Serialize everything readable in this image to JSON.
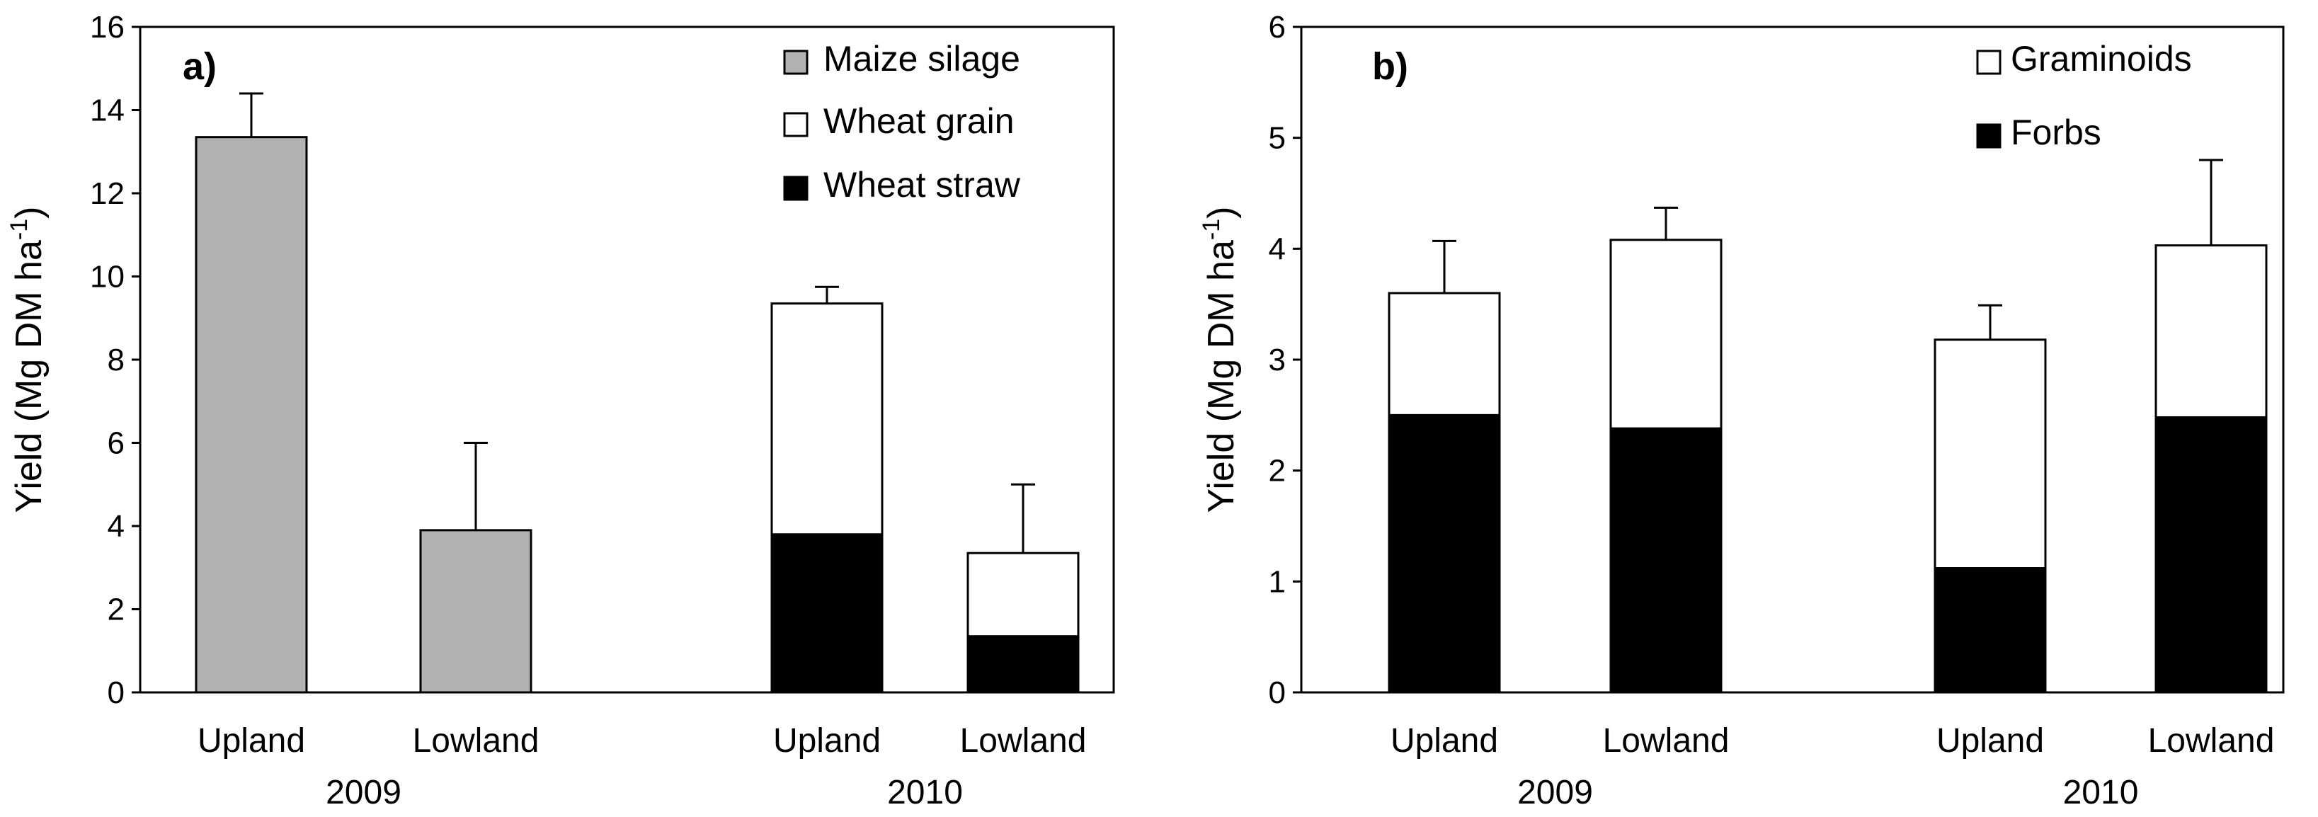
{
  "chart_data": [
    {
      "type": "bar",
      "stacked": true,
      "panel_label": "a)",
      "title": "",
      "xlabel": "",
      "ylabel": "Yield (Mg DM ha",
      "ylabel_sup": "-1",
      "ylabel_close": ")",
      "ylim": [
        0,
        16
      ],
      "yticks": [
        0,
        2,
        4,
        6,
        8,
        10,
        12,
        14,
        16
      ],
      "categories": [
        "Upland",
        "Lowland",
        "Upland",
        "Lowland"
      ],
      "groups": [
        {
          "label": "2009",
          "category_indices": [
            0,
            1
          ]
        },
        {
          "label": "2010",
          "category_indices": [
            2,
            3
          ]
        }
      ],
      "legend_position": "top-right",
      "series": [
        {
          "name": "Wheat straw",
          "color": "#000000",
          "values": [
            0,
            0,
            3.8,
            1.35
          ]
        },
        {
          "name": "Wheat grain",
          "color": "#ffffff",
          "values": [
            0,
            0,
            5.55,
            2.0
          ]
        },
        {
          "name": "Maize silage",
          "color": "#b2b2b2",
          "values": [
            13.35,
            3.9,
            0,
            0
          ]
        }
      ],
      "legend_order": [
        "Maize silage",
        "Wheat grain",
        "Wheat straw"
      ],
      "totals": [
        13.35,
        3.9,
        9.35,
        3.35
      ],
      "error_bars": [
        1.05,
        2.1,
        0.4,
        1.65
      ]
    },
    {
      "type": "bar",
      "stacked": true,
      "panel_label": "b)",
      "title": "",
      "xlabel": "",
      "ylabel": "Yield (Mg DM ha",
      "ylabel_sup": "-1",
      "ylabel_close": ")",
      "ylim": [
        0,
        6
      ],
      "yticks": [
        0,
        1,
        2,
        3,
        4,
        5,
        6
      ],
      "categories": [
        "Upland",
        "Lowland",
        "Upland",
        "Lowland"
      ],
      "groups": [
        {
          "label": "2009",
          "category_indices": [
            0,
            1
          ]
        },
        {
          "label": "2010",
          "category_indices": [
            2,
            3
          ]
        }
      ],
      "legend_position": "top-right",
      "series": [
        {
          "name": "Forbs",
          "color": "#000000",
          "values": [
            2.5,
            2.38,
            1.12,
            2.48
          ]
        },
        {
          "name": "Graminoids",
          "color": "#ffffff",
          "values": [
            1.1,
            1.7,
            2.06,
            1.55
          ]
        }
      ],
      "legend_order": [
        "Graminoids",
        "Forbs"
      ],
      "totals": [
        3.6,
        4.08,
        3.18,
        4.03
      ],
      "error_bars": [
        0.47,
        0.29,
        0.31,
        0.77
      ]
    }
  ]
}
